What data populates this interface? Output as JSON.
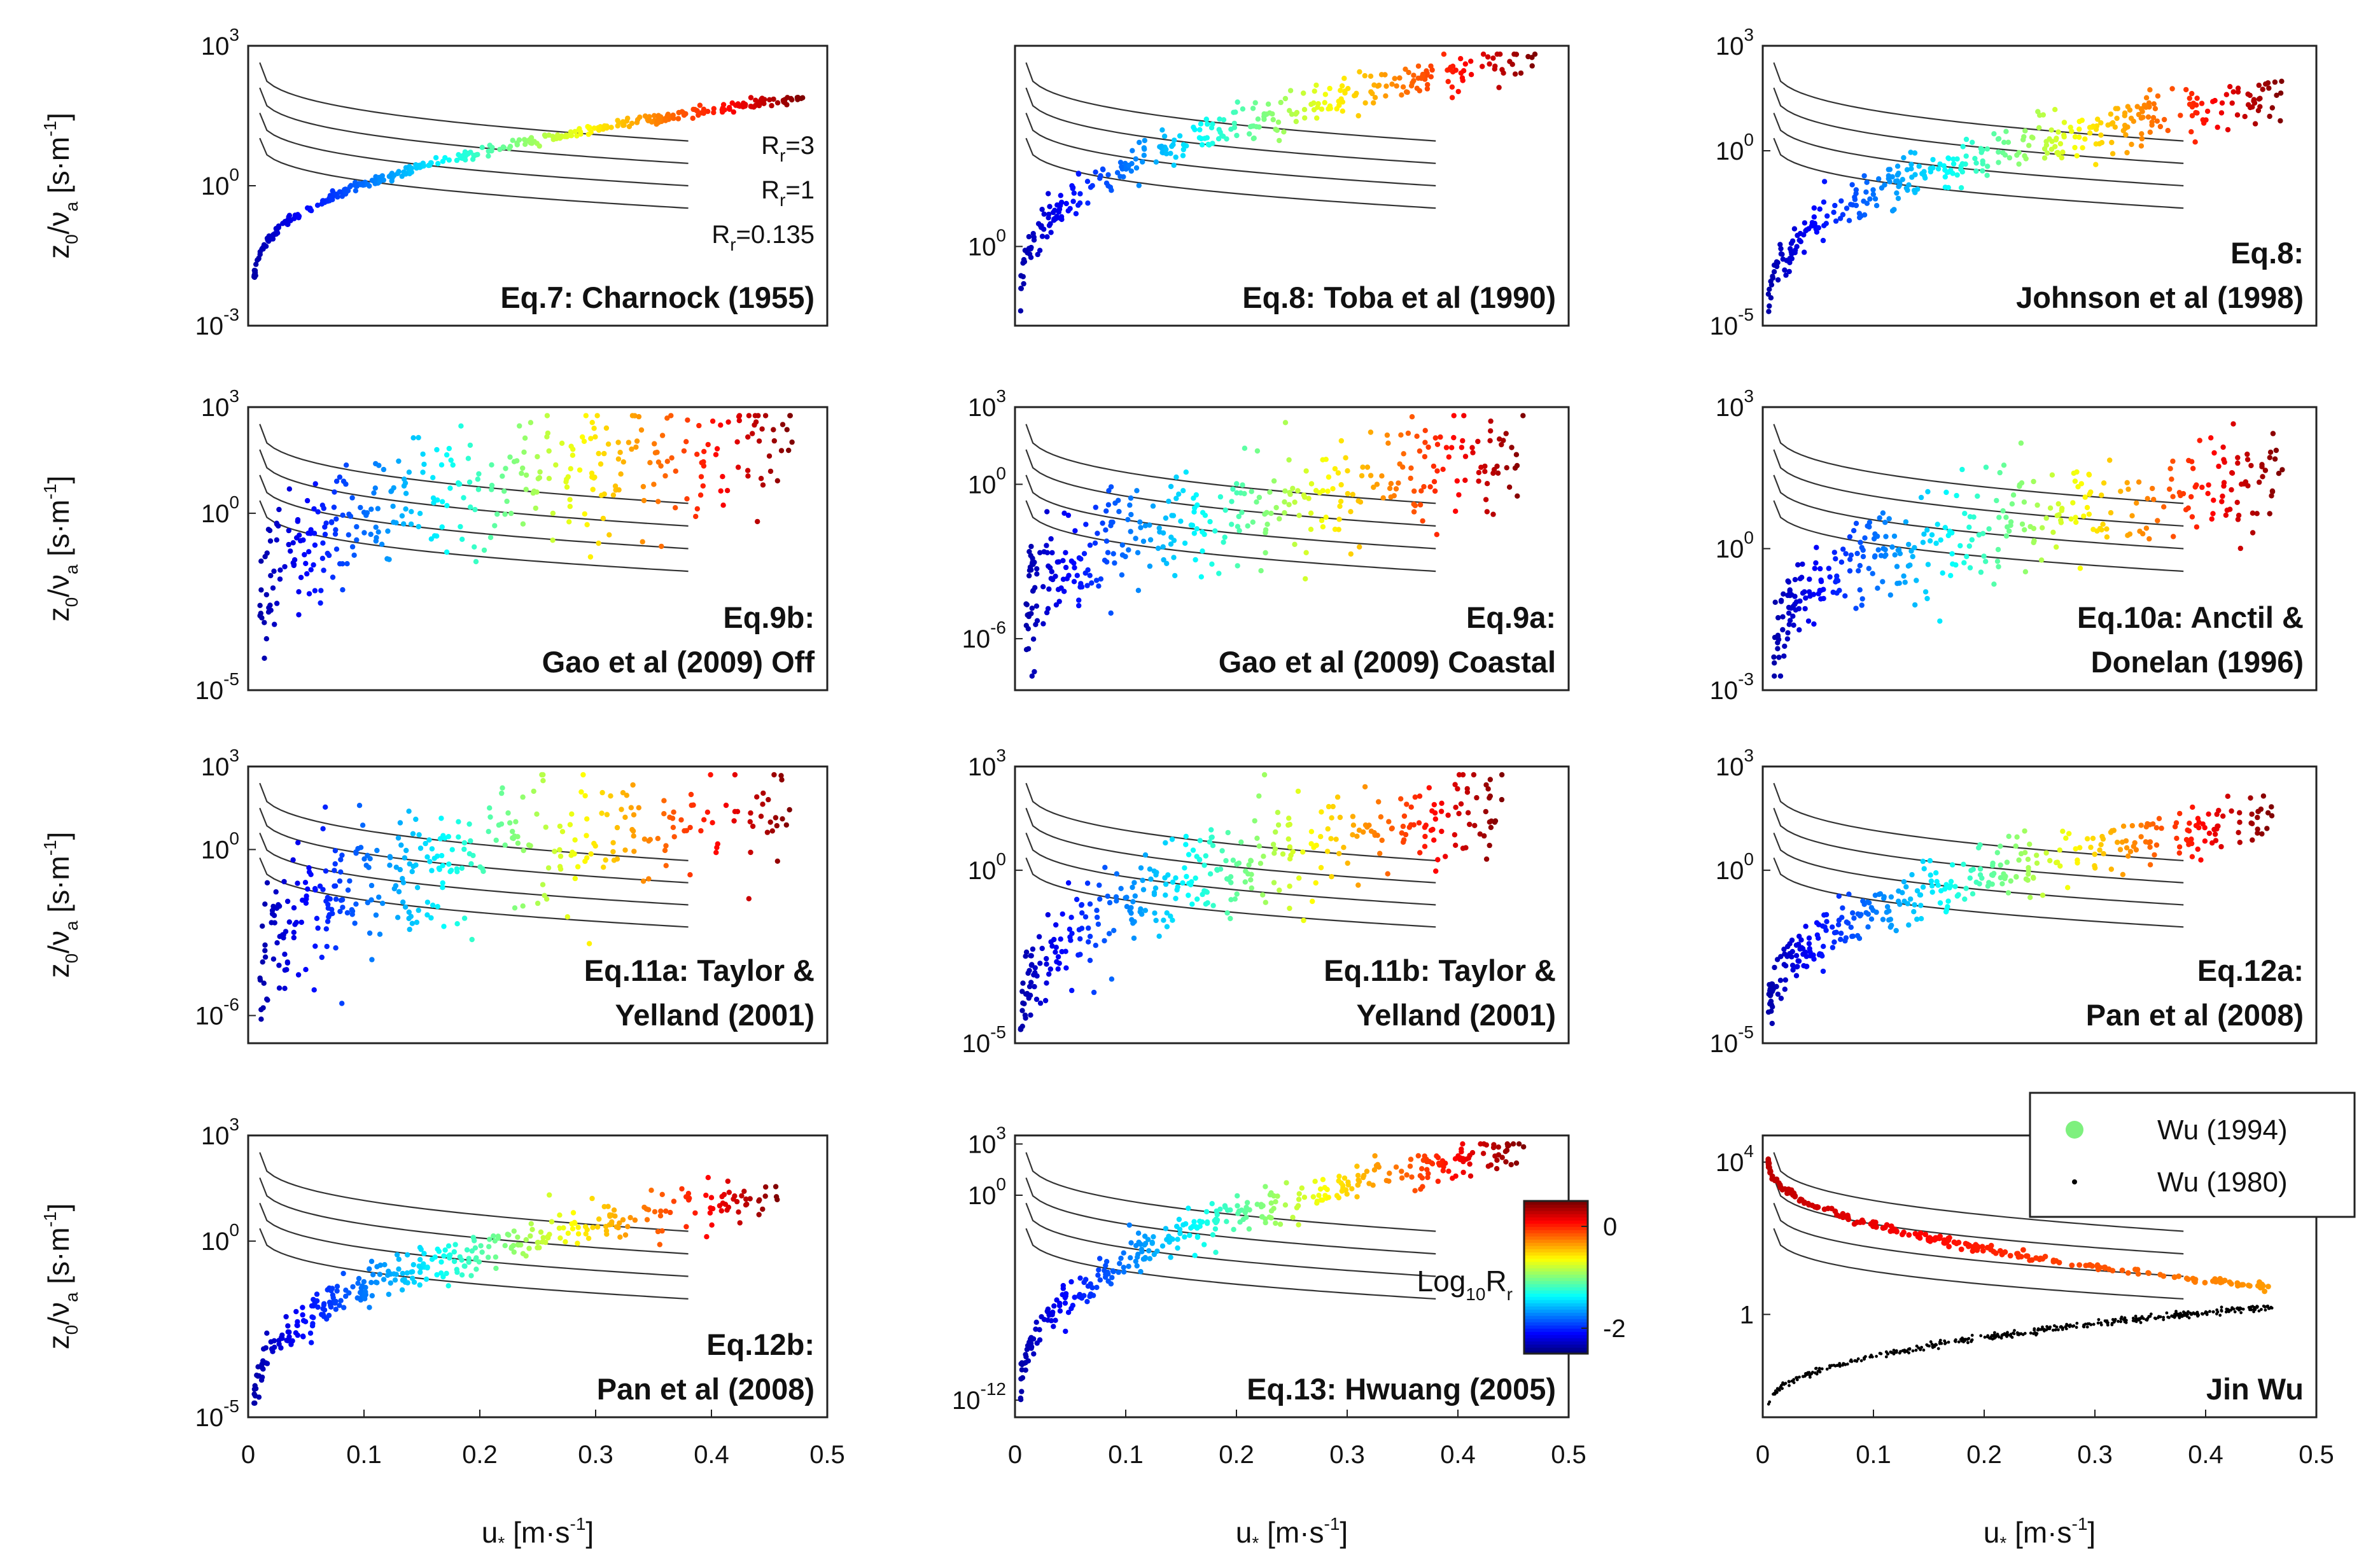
{
  "figure": {
    "ylabel": {
      "z": "z",
      "sub0": "0",
      "slash": "/",
      "nu": "ν",
      "suba": "a",
      "unit_open": " [s·m",
      "unit_exp": "-1",
      "unit_close": "]"
    },
    "xlabel": {
      "u": "u",
      "sub": "*",
      "unit": " [m·s",
      "exp": "-1",
      "close": "]"
    }
  },
  "chart_data": [
    {
      "id": "p1",
      "type": "scatter",
      "title_lines": [
        "Eq.7: Charnock (1955)"
      ],
      "xlim": [
        0,
        0.5
      ],
      "xticks": [],
      "ylim_log10": [
        -3,
        3
      ],
      "yticks": [
        {
          "base": "10",
          "exp": "3",
          "v": 3
        },
        {
          "base": "10",
          "exp": "0",
          "v": 0
        },
        {
          "base": "10",
          "exp": "-3",
          "v": -3
        }
      ],
      "annotations": [
        {
          "label": "R",
          "sub": "r",
          "rest": "=3"
        },
        {
          "label": "R",
          "sub": "r",
          "rest": "=1"
        },
        {
          "label": "R",
          "sub": "r",
          "rest": "=0.135"
        }
      ],
      "scatter": {
        "x_min": 0.005,
        "x_max": 0.48,
        "y_start": -2.2,
        "y_end": 1.9,
        "shape": "sqrt",
        "scatter_log10": 0.05,
        "n": 360
      }
    },
    {
      "id": "p2",
      "type": "scatter",
      "title_lines": [
        "Eq.8: Toba et al (1990)"
      ],
      "xlim": [
        0,
        0.5
      ],
      "xticks": [],
      "ylim_log10": [
        -1.5,
        3.8
      ],
      "yticks": [
        {
          "base": "10",
          "exp": "0",
          "v": 0
        }
      ],
      "scatter": {
        "x_min": 0.005,
        "x_max": 0.47,
        "y_start": -1.1,
        "y_end": 3.6,
        "shape": "sqrt",
        "scatter_log10": 0.18,
        "n": 320
      }
    },
    {
      "id": "p3",
      "type": "scatter",
      "title_lines": [
        "Eq.8:",
        "Johnson et al (1998)"
      ],
      "xlim": [
        0,
        0.5
      ],
      "xticks": [],
      "ylim_log10": [
        -5,
        3
      ],
      "yticks": [
        {
          "base": "10",
          "exp": "3",
          "v": 3
        },
        {
          "base": "10",
          "exp": "0",
          "v": 0
        },
        {
          "base": "10",
          "exp": "-5",
          "v": -5
        }
      ],
      "scatter": {
        "x_min": 0.005,
        "x_max": 0.47,
        "y_start": -4.7,
        "y_end": 1.6,
        "shape": "sqrt",
        "scatter_log10": 0.35,
        "n": 360
      }
    },
    {
      "id": "p4",
      "type": "scatter",
      "title_lines": [
        "Eq.9b:",
        "Gao et al (2009) Off"
      ],
      "xlim": [
        0,
        0.5
      ],
      "xticks": [],
      "ylim_log10": [
        -5,
        3
      ],
      "yticks": [
        {
          "base": "10",
          "exp": "3",
          "v": 3
        },
        {
          "base": "10",
          "exp": "0",
          "v": 0
        },
        {
          "base": "10",
          "exp": "-5",
          "v": -5
        }
      ],
      "scatter": {
        "x_min": 0.01,
        "x_max": 0.47,
        "y_start": -2.8,
        "y_end": 1.9,
        "shape": "sqrt",
        "scatter_log10": 0.9,
        "n": 360
      }
    },
    {
      "id": "p5",
      "type": "scatter",
      "title_lines": [
        "Eq.9a:",
        "Gao et al (2009) Coastal"
      ],
      "xlim": [
        0,
        0.5
      ],
      "xticks": [],
      "ylim_log10": [
        -8,
        3
      ],
      "yticks": [
        {
          "base": "10",
          "exp": "3",
          "v": 3
        },
        {
          "base": "10",
          "exp": "0",
          "v": 0
        },
        {
          "base": "10",
          "exp": "-6",
          "v": -6
        }
      ],
      "scatter": {
        "x_min": 0.01,
        "x_max": 0.46,
        "y_start": -5.5,
        "y_end": 0.8,
        "shape": "sqrt",
        "scatter_log10": 1.1,
        "n": 360
      }
    },
    {
      "id": "p6",
      "type": "scatter",
      "title_lines": [
        "Eq.10a: Anctil &",
        "Donelan (1996)"
      ],
      "xlim": [
        0,
        0.5
      ],
      "xticks": [],
      "ylim_log10": [
        -3,
        3
      ],
      "yticks": [
        {
          "base": "10",
          "exp": "3",
          "v": 3
        },
        {
          "base": "10",
          "exp": "0",
          "v": 0
        },
        {
          "base": "10",
          "exp": "-3",
          "v": -3
        }
      ],
      "scatter": {
        "x_min": 0.01,
        "x_max": 0.47,
        "y_start": -2.3,
        "y_end": 1.4,
        "shape": "sqrt",
        "scatter_log10": 0.55,
        "n": 360
      }
    },
    {
      "id": "p7",
      "type": "scatter",
      "title_lines": [
        "Eq.11a: Taylor &",
        "Yelland (2001)"
      ],
      "xlim": [
        0,
        0.5
      ],
      "xticks": [],
      "ylim_log10": [
        -7,
        3
      ],
      "yticks": [
        {
          "base": "10",
          "exp": "3",
          "v": 3
        },
        {
          "base": "10",
          "exp": "0",
          "v": 0
        },
        {
          "base": "10",
          "exp": "-6",
          "v": -6
        }
      ],
      "scatter": {
        "x_min": 0.01,
        "x_max": 0.47,
        "y_start": -4.5,
        "y_end": 1.6,
        "shape": "sqrt",
        "scatter_log10": 1.2,
        "n": 360
      }
    },
    {
      "id": "p8",
      "type": "scatter",
      "title_lines": [
        "Eq.11b: Taylor &",
        "Yelland (2001)"
      ],
      "xlim": [
        0,
        0.5
      ],
      "xticks": [],
      "ylim_log10": [
        -5,
        3
      ],
      "yticks": [
        {
          "base": "10",
          "exp": "3",
          "v": 3
        },
        {
          "base": "10",
          "exp": "0",
          "v": 0
        },
        {
          "base": "10",
          "exp": "-5",
          "v": -5
        }
      ],
      "scatter": {
        "x_min": 0.005,
        "x_max": 0.44,
        "y_start": -4.9,
        "y_end": 1.9,
        "shape": "sqrt",
        "scatter_log10": 0.7,
        "n": 360
      }
    },
    {
      "id": "p9",
      "type": "scatter",
      "title_lines": [
        "Eq.12a:",
        "Pan et al (2008)"
      ],
      "xlim": [
        0,
        0.5
      ],
      "xticks": [],
      "ylim_log10": [
        -5,
        3
      ],
      "yticks": [
        {
          "base": "10",
          "exp": "3",
          "v": 3
        },
        {
          "base": "10",
          "exp": "0",
          "v": 0
        },
        {
          "base": "10",
          "exp": "-5",
          "v": -5
        }
      ],
      "scatter": {
        "x_min": 0.005,
        "x_max": 0.46,
        "y_start": -4.5,
        "y_end": 1.5,
        "shape": "sqrt",
        "scatter_log10": 0.4,
        "n": 360
      }
    },
    {
      "id": "p10",
      "type": "scatter",
      "title_lines": [
        "Eq.12b:",
        "Pan et al (2008)"
      ],
      "xlim": [
        0,
        0.5
      ],
      "xticks": [
        "0",
        "0.1",
        "0.2",
        "0.3",
        "0.4",
        "0.5"
      ],
      "ylim_log10": [
        -5,
        3
      ],
      "yticks": [
        {
          "base": "10",
          "exp": "3",
          "v": 3
        },
        {
          "base": "10",
          "exp": "0",
          "v": 0
        },
        {
          "base": "10",
          "exp": "-5",
          "v": -5
        }
      ],
      "scatter": {
        "x_min": 0.005,
        "x_max": 0.46,
        "y_start": -4.8,
        "y_end": 1.4,
        "shape": "sqrt",
        "scatter_log10": 0.3,
        "n": 360
      }
    },
    {
      "id": "p11",
      "type": "scatter",
      "title_lines": [
        "Eq.13: Hwuang (2005)"
      ],
      "xlim": [
        0,
        0.5
      ],
      "xticks": [
        "0",
        "0.1",
        "0.2",
        "0.3",
        "0.4",
        "0.5"
      ],
      "ylim_log10": [
        -13,
        3.5
      ],
      "yticks": [
        {
          "base": "10",
          "exp": "3",
          "v": 3
        },
        {
          "base": "10",
          "exp": "0",
          "v": 0
        },
        {
          "base": "10",
          "exp": "-12",
          "v": -12
        }
      ],
      "scatter": {
        "x_min": 0.005,
        "x_max": 0.46,
        "y_start": -12.0,
        "y_end": 2.8,
        "shape": "sqrt",
        "scatter_log10": 0.6,
        "n": 360
      },
      "colorbar": {
        "label_main": "Log",
        "label_sub": "10",
        "label_tail": "R",
        "label_tail_sub": "r",
        "ticks": [
          "0",
          "-2"
        ],
        "range": [
          -2.5,
          0.5
        ]
      }
    },
    {
      "id": "p12",
      "type": "scatter",
      "title_lines": [
        "Jin Wu"
      ],
      "xlim": [
        0,
        0.5
      ],
      "xticks": [
        "0",
        "0.1",
        "0.2",
        "0.3",
        "0.4",
        "0.5"
      ],
      "ylim_log10": [
        -2.7,
        4.7
      ],
      "yticks": [
        {
          "base": "10",
          "exp": "4",
          "v": 4
        },
        {
          "base": "1",
          "exp": "",
          "v": 0
        }
      ],
      "legend": [
        {
          "label": "Wu (1994)",
          "color": "#7ef07e"
        },
        {
          "label": "Wu (1980)",
          "color": "#000000"
        }
      ],
      "series": [
        {
          "name": "Wu (1994)",
          "x_min": 0.005,
          "x_max": 0.46,
          "y_start": 4.1,
          "y_end": 0.7
        },
        {
          "name": "Wu (1980)",
          "x_min": 0.005,
          "x_max": 0.46,
          "y_start": -2.5,
          "y_end": 0.2
        }
      ]
    }
  ],
  "reference_lines": {
    "count": 4,
    "x_range": [
      0.01,
      0.38
    ]
  }
}
